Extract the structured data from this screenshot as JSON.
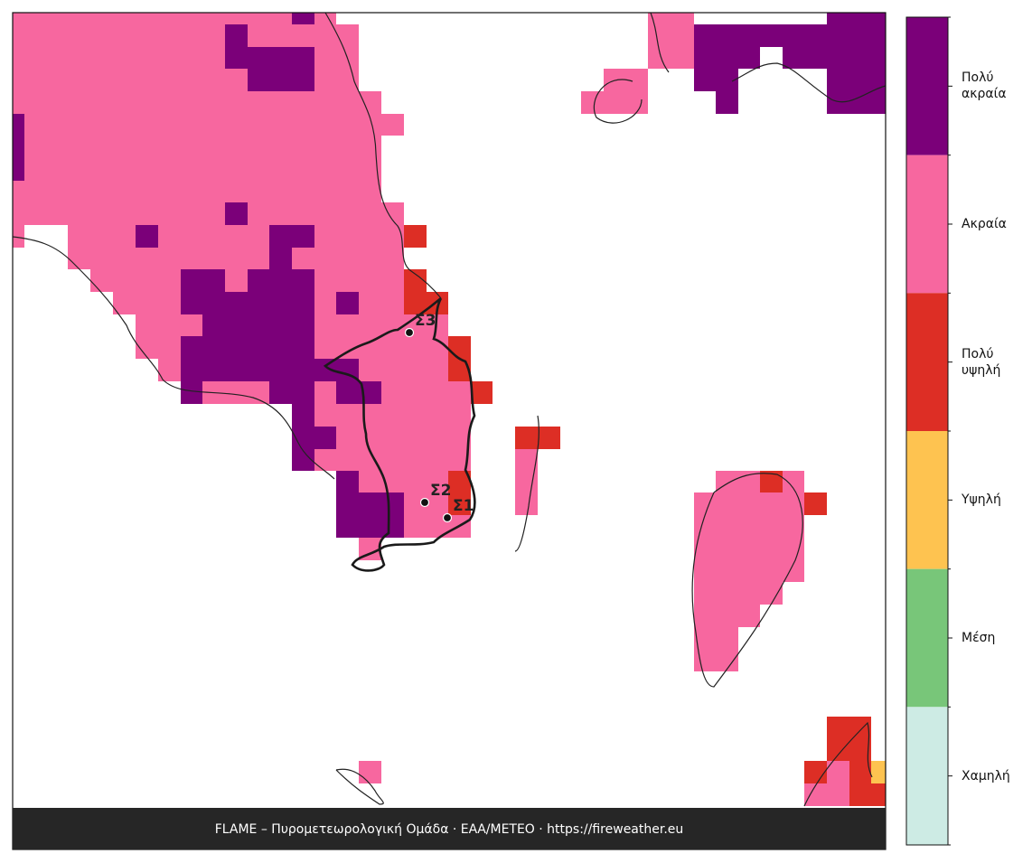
{
  "map": {
    "points": [
      {
        "label": "Σ1"
      },
      {
        "label": "Σ2"
      },
      {
        "label": "Σ3"
      }
    ]
  },
  "legend": {
    "levels": [
      {
        "label": "Πολύ ακραία",
        "color": "#7b0079"
      },
      {
        "label": "Ακραία",
        "color": "#f7679f"
      },
      {
        "label": "Πολύ υψηλή",
        "color": "#dd2e25"
      },
      {
        "label": "Υψηλή",
        "color": "#fec350"
      },
      {
        "label": "Μέση",
        "color": "#78c679"
      },
      {
        "label": "Χαμηλή",
        "color": "#cdebe4"
      }
    ]
  },
  "footer": "FLAME – Πυρομετεωρολογική Ομάδα · ΕΑΑ/METEO · https://fireweather.eu"
}
